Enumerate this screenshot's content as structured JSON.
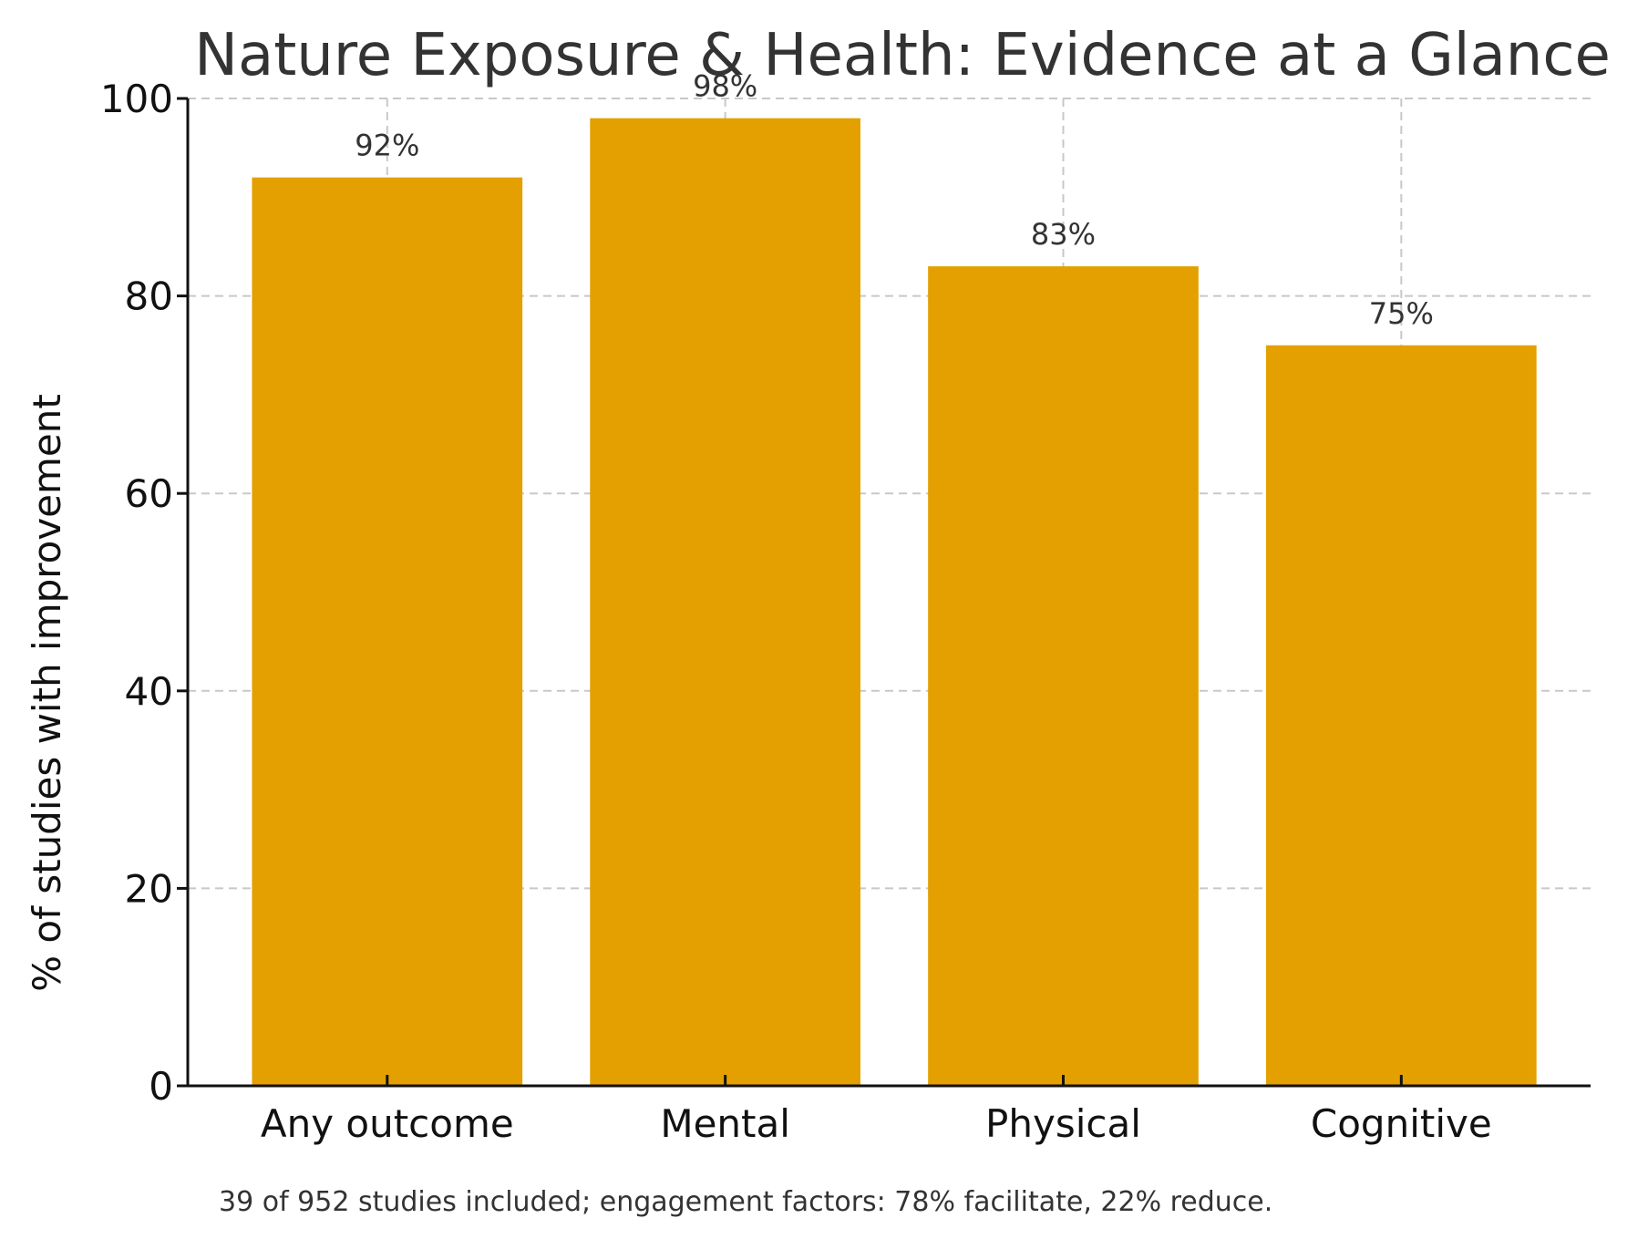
{
  "chart_data": {
    "type": "bar",
    "title": "Nature Exposure & Health: Evidence at a Glance",
    "ylabel": "% of studies with improvement",
    "xlabel": "",
    "categories": [
      "Any outcome",
      "Mental",
      "Physical",
      "Cognitive"
    ],
    "values": [
      92,
      98,
      83,
      75
    ],
    "data_labels": [
      "92%",
      "98%",
      "83%",
      "75%"
    ],
    "ylim": [
      0,
      100
    ],
    "yticks": [
      0,
      20,
      40,
      60,
      80,
      100
    ],
    "ytick_labels": [
      "0",
      "20",
      "40",
      "60",
      "80",
      "100"
    ],
    "grid": true,
    "legend": "none",
    "bar_color": "#E3A000",
    "footnote": "39 of 952 studies included; engagement factors: 78% facilitate, 22% reduce."
  }
}
